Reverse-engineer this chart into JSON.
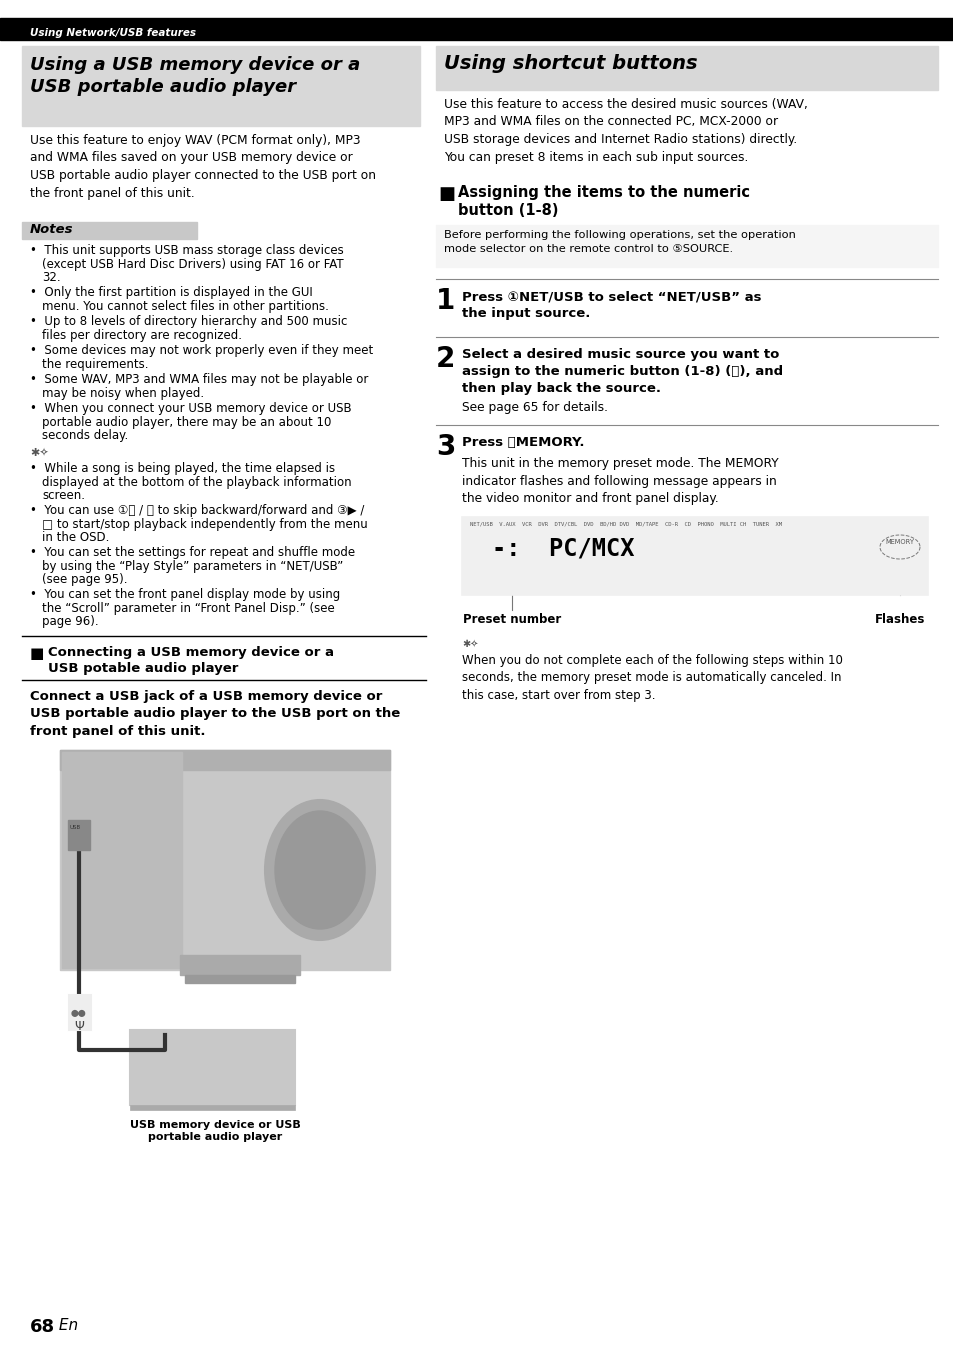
{
  "page_bg": "#ffffff",
  "header_bg": "#000000",
  "header_text": "Using Network/USB features",
  "header_text_color": "#ffffff",
  "left_section_bg": "#d8d8d8",
  "left_title": "Using a USB memory device or a\nUSB portable audio player",
  "right_section_bg": "#d8d8d8",
  "right_title": "Using shortcut buttons",
  "notes_box_bg": "#c8c8c8",
  "notes_label": "Notes",
  "left_body_text": "Use this feature to enjoy WAV (PCM format only), MP3\nand WMA files saved on your USB memory device or\nUSB portable audio player connected to the USB port on\nthe front panel of this unit.",
  "notes_bullets": [
    "This unit supports USB mass storage class devices (except USB Hard Disc Drivers) using FAT 16 or FAT 32.",
    "Only the first partition is displayed in the GUI menu. You cannot select files in other partitions.",
    "Up to 8 levels of directory hierarchy and 500 music files per directory are recognized.",
    "Some devices may not work properly even if they meet the requirements.",
    "Some WAV, MP3 and WMA files may not be playable or may be noisy when played.",
    "When you connect your USB memory device or USB portable audio player, there may be an about 10 seconds delay."
  ],
  "tip_bullets_left": [
    "While a song is being played, the time elapsed is displayed at the bottom of the playback information screen.",
    "You can use ①⏪ / ⏩ to skip backward/forward and ③▶ / □ to start/stop playback independently from the menu in the OSD.",
    "You can set the settings for repeat and shuffle mode by using the “Play Style” parameters in “NET/USB” (see page 95).",
    "You can set the front panel display mode by using the “Scroll” parameter in “Front Panel Disp.” (see page 96)."
  ],
  "left_section2_title": "Connecting a USB memory device or a USB potable audio player",
  "connect_bold_text": "Connect a USB jack of a USB memory device or\nUSB portable audio player to the USB port on the\nfront panel of this unit.",
  "usb_label": "USB memory device or USB\nportable audio player",
  "right_body_text": "Use this feature to access the desired music sources (WAV,\nMP3 and WMA files on the connected PC, MCX-2000 or\nUSB storage devices and Internet Radio stations) directly.\nYou can preset 8 items in each sub input sources.",
  "assign_title": "Assigning the items to the numeric button (1-8)",
  "preset_note": "Before performing the following operations, set the operation\nmode selector on the remote control to @SOURCE.",
  "step1_num": "1",
  "step1_text": "Press ①NET/USB to select “NET/USB” as the input source.",
  "step2_num": "2",
  "step2_text": "Select a desired music source you want to assign to the numeric button (1-8) (Ⓠ), and then play back the source.",
  "step2_sub": "See page 65 for details.",
  "step3_num": "3",
  "step3_bold": "Press ⓄMEMORY.",
  "step3_body": "This unit in the memory preset mode. The MEMORY\nindicator flashes and following message appears in\nthe video monitor and front panel display.",
  "display_top_labels": "NET/USB  V.AUX  VCR  DVR  DTV/CBL  DVD  BD/HD DVD  MD/TAPE  CD-R  CD  PHONO  MULTI CH  TUNER  XM",
  "display_main_text": "-:  PC/MCX",
  "display_memory_label": "MEMORY",
  "preset_label": "Preset number",
  "flashes_label": "Flashes",
  "tip_right_text": "When you do not complete each of the following steps within 10\nseconds, the memory preset mode is automatically canceled. In\nthis case, start over from step 3.",
  "page_num_bold": "68",
  "page_num_italic": " En"
}
